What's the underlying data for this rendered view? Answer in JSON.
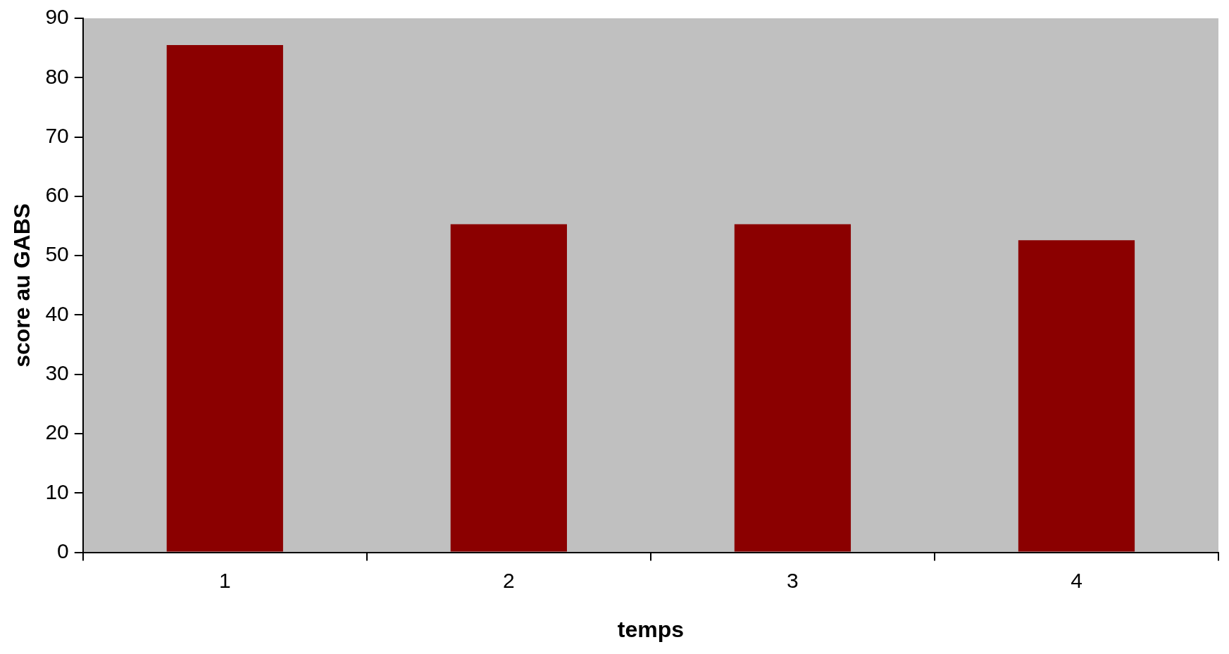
{
  "chart_data": {
    "type": "bar",
    "xlabel": "temps",
    "ylabel": "score au GABS",
    "categories": [
      "1",
      "2",
      "3",
      "4"
    ],
    "values": [
      85.5,
      55.3,
      55.3,
      52.6
    ],
    "color": "#8b0000",
    "ylim": [
      0,
      90
    ],
    "yticks": [
      0,
      10,
      20,
      30,
      40,
      50,
      60,
      70,
      80,
      90
    ],
    "grid": false,
    "legend": false
  }
}
